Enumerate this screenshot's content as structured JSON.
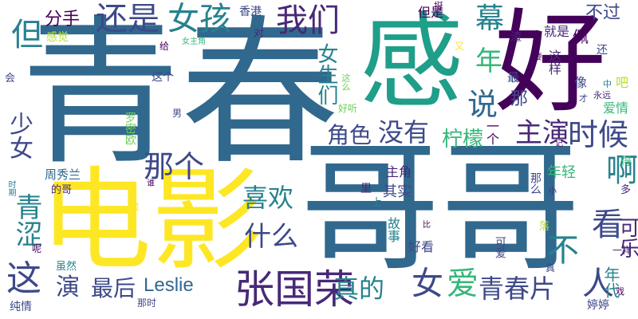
{
  "palette": {
    "purple": "#482878",
    "dark_purple": "#44015a",
    "indigo": "#3e4989",
    "blue": "#31688e",
    "teal": "#26828e",
    "teal_green": "#1f9e89",
    "green": "#35b779",
    "light_green": "#6ece58",
    "yellow_green": "#b5de2b",
    "yellow": "#fde725"
  },
  "words": [
    {
      "text": "青春",
      "color": "blue",
      "orientation": "horizontal"
    },
    {
      "text": "哥哥",
      "color": "blue",
      "orientation": "horizontal"
    },
    {
      "text": "电影",
      "color": "yellow",
      "orientation": "horizontal"
    },
    {
      "text": "好",
      "color": "dark_purple",
      "orientation": "horizontal"
    },
    {
      "text": "感",
      "color": "teal_green",
      "orientation": "vertical"
    },
    {
      "text": "张国荣",
      "color": "purple",
      "orientation": "horizontal"
    },
    {
      "text": "还是",
      "color": "indigo",
      "orientation": "horizontal"
    },
    {
      "text": "女孩",
      "color": "teal",
      "orientation": "horizontal"
    },
    {
      "text": "我们",
      "color": "purple",
      "orientation": "horizontal"
    },
    {
      "text": "幕",
      "color": "teal",
      "orientation": "horizontal"
    },
    {
      "text": "不过",
      "color": "indigo",
      "orientation": "horizontal"
    },
    {
      "text": "年",
      "color": "green",
      "orientation": "horizontal"
    },
    {
      "text": "说",
      "color": "blue",
      "orientation": "horizontal"
    },
    {
      "text": "时候",
      "color": "indigo",
      "orientation": "horizontal"
    },
    {
      "text": "没有",
      "color": "indigo",
      "orientation": "horizontal"
    },
    {
      "text": "柠檬",
      "color": "green",
      "orientation": "horizontal"
    },
    {
      "text": "角色",
      "color": "indigo",
      "orientation": "horizontal"
    },
    {
      "text": "主演",
      "color": "purple",
      "orientation": "horizontal"
    },
    {
      "text": "啊",
      "color": "teal",
      "orientation": "horizontal"
    },
    {
      "text": "那个",
      "color": "indigo",
      "orientation": "horizontal"
    },
    {
      "text": "喜欢",
      "color": "teal",
      "orientation": "horizontal"
    },
    {
      "text": "什么",
      "color": "indigo",
      "orientation": "horizontal"
    },
    {
      "text": "看",
      "color": "indigo",
      "orientation": "horizontal"
    },
    {
      "text": "不",
      "color": "teal",
      "orientation": "horizontal"
    },
    {
      "text": "人",
      "color": "indigo",
      "orientation": "horizontal"
    },
    {
      "text": "可乐",
      "color": "purple",
      "orientation": "vertical"
    },
    {
      "text": "真的",
      "color": "teal",
      "orientation": "horizontal"
    },
    {
      "text": "女",
      "color": "indigo",
      "orientation": "horizontal"
    },
    {
      "text": "爱",
      "color": "green",
      "orientation": "horizontal"
    },
    {
      "text": "青春片",
      "color": "indigo",
      "orientation": "horizontal"
    },
    {
      "text": "最后",
      "color": "indigo",
      "orientation": "horizontal"
    },
    {
      "text": "Leslie",
      "color": "blue",
      "orientation": "horizontal"
    },
    {
      "text": "演",
      "color": "indigo",
      "orientation": "horizontal"
    },
    {
      "text": "这",
      "color": "indigo",
      "orientation": "horizontal"
    },
    {
      "text": "青涩",
      "color": "teal",
      "orientation": "vertical"
    },
    {
      "text": "少女",
      "color": "indigo",
      "orientation": "vertical"
    },
    {
      "text": "但",
      "color": "teal",
      "orientation": "horizontal"
    },
    {
      "text": "分手",
      "color": "dark_purple",
      "orientation": "horizontal"
    },
    {
      "text": "感觉",
      "color": "yellow_green",
      "orientation": "horizontal"
    },
    {
      "text": "香港",
      "color": "indigo",
      "orientation": "horizontal"
    },
    {
      "text": "对",
      "color": "purple",
      "orientation": "horizontal"
    },
    {
      "text": "挺",
      "color": "dark_purple",
      "orientation": "horizontal"
    },
    {
      "text": "但是",
      "color": "dark_purple",
      "orientation": "horizontal"
    },
    {
      "text": "渣",
      "color": "purple",
      "orientation": "horizontal"
    },
    {
      "text": "就是",
      "color": "purple",
      "orientation": "horizontal"
    },
    {
      "text": "佩",
      "color": "dark_purple",
      "orientation": "horizontal"
    },
    {
      "text": "女生们",
      "color": "teal",
      "orientation": "vertical"
    },
    {
      "text": "给",
      "color": "dark_purple",
      "orientation": "horizontal"
    },
    {
      "text": "女主角",
      "color": "green",
      "orientation": "horizontal"
    },
    {
      "text": "又",
      "color": "yellow",
      "orientation": "horizontal"
    },
    {
      "text": "这样",
      "color": "purple",
      "orientation": "vertical"
    },
    {
      "text": "要",
      "color": "dark_purple",
      "orientation": "horizontal"
    },
    {
      "text": "还",
      "color": "indigo",
      "orientation": "horizontal"
    },
    {
      "text": "会",
      "color": "indigo",
      "orientation": "horizontal"
    },
    {
      "text": "这个",
      "color": "indigo",
      "orientation": "horizontal"
    },
    {
      "text": "最",
      "color": "indigo",
      "orientation": "horizontal"
    },
    {
      "text": "像",
      "color": "indigo",
      "orientation": "horizontal"
    },
    {
      "text": "中",
      "color": "teal",
      "orientation": "horizontal"
    },
    {
      "text": "吧",
      "color": "yellow_green",
      "orientation": "horizontal"
    },
    {
      "text": "这么",
      "color": "light_green",
      "orientation": "vertical"
    },
    {
      "text": "好听",
      "color": "light_green",
      "orientation": "horizontal"
    },
    {
      "text": "才",
      "color": "indigo",
      "orientation": "horizontal"
    },
    {
      "text": "那",
      "color": "indigo",
      "orientation": "horizontal"
    },
    {
      "text": "永远",
      "color": "purple",
      "orientation": "horizontal"
    },
    {
      "text": "爱情",
      "color": "green",
      "orientation": "horizontal"
    },
    {
      "text": "男",
      "color": "indigo",
      "orientation": "horizontal"
    },
    {
      "text": "罗密欧",
      "color": "light_green",
      "orientation": "vertical"
    },
    {
      "text": "一个",
      "color": "dark_purple",
      "orientation": "vertical"
    },
    {
      "text": "记",
      "color": "dark_purple",
      "orientation": "horizontal"
    },
    {
      "text": "周秀兰",
      "color": "blue",
      "orientation": "horizontal"
    },
    {
      "text": "的哥",
      "color": "purple",
      "orientation": "horizontal"
    },
    {
      "text": "谁",
      "color": "dark_purple",
      "orientation": "horizontal"
    },
    {
      "text": "主角",
      "color": "purple",
      "orientation": "horizontal"
    },
    {
      "text": "年轻",
      "color": "green",
      "orientation": "horizontal"
    },
    {
      "text": "那么",
      "color": "indigo",
      "orientation": "vertical"
    },
    {
      "text": "其实",
      "color": "indigo",
      "orientation": "horizontal"
    },
    {
      "text": "里",
      "color": "purple",
      "orientation": "horizontal"
    },
    {
      "text": "上",
      "color": "teal",
      "orientation": "horizontal"
    },
    {
      "text": "小",
      "color": "purple",
      "orientation": "horizontal"
    },
    {
      "text": "得",
      "color": "green",
      "orientation": "horizontal"
    },
    {
      "text": "多",
      "color": "purple",
      "orientation": "horizontal"
    },
    {
      "text": "时期",
      "color": "teal",
      "orientation": "vertical"
    },
    {
      "text": "过",
      "color": "yellow",
      "orientation": "horizontal"
    },
    {
      "text": "呢",
      "color": "dark_purple",
      "orientation": "horizontal"
    },
    {
      "text": "故事",
      "color": "teal",
      "orientation": "vertical"
    },
    {
      "text": "比",
      "color": "dark_purple",
      "orientation": "horizontal"
    },
    {
      "text": "好看",
      "color": "indigo",
      "orientation": "horizontal"
    },
    {
      "text": "可爱",
      "color": "indigo",
      "orientation": "vertical"
    },
    {
      "text": "落",
      "color": "yellow_green",
      "orientation": "horizontal"
    },
    {
      "text": "一样",
      "color": "purple",
      "orientation": "horizontal"
    },
    {
      "text": "虽然",
      "color": "teal",
      "orientation": "horizontal"
    },
    {
      "text": "真",
      "color": "indigo",
      "orientation": "horizontal"
    },
    {
      "text": "年代",
      "color": "teal",
      "orientation": "vertical"
    },
    {
      "text": "那时",
      "color": "indigo",
      "orientation": "horizontal"
    },
    {
      "text": "戏",
      "color": "dark_purple",
      "orientation": "horizontal"
    },
    {
      "text": "纯情",
      "color": "indigo",
      "orientation": "horizontal"
    },
    {
      "text": "婷婷",
      "color": "indigo",
      "orientation": "horizontal"
    }
  ]
}
